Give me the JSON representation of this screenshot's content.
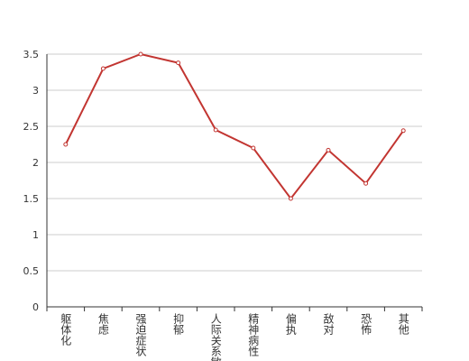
{
  "chart_data": {
    "type": "line",
    "categories": [
      "躯体化",
      "焦虑",
      "强迫症状",
      "抑郁",
      "人际关系敏感",
      "精神病性",
      "偏执",
      "敌对",
      "恐怖",
      "其他"
    ],
    "values": [
      2.25,
      3.3,
      3.5,
      3.38,
      2.45,
      2.2,
      1.5,
      2.17,
      1.71,
      2.44
    ],
    "color": "#c23531",
    "ylim": [
      0,
      3.5
    ],
    "yticks": [
      0,
      0.5,
      1,
      1.5,
      2,
      2.5,
      3,
      3.5
    ],
    "grid": true
  }
}
